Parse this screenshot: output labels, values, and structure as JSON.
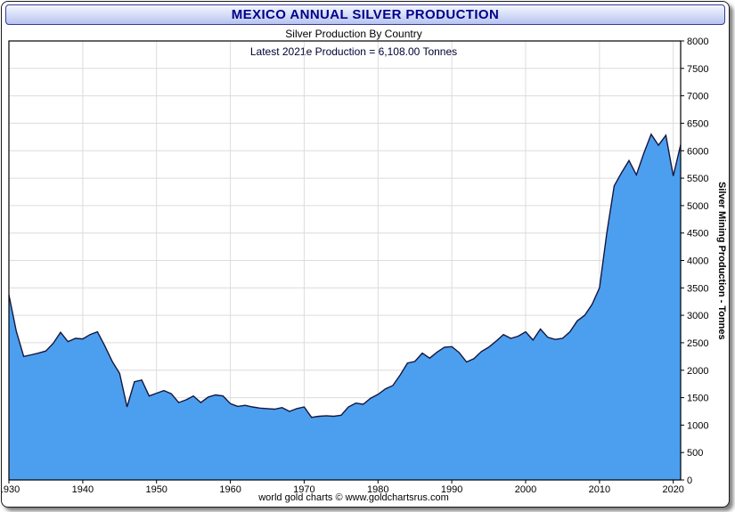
{
  "window": {
    "title": "MEXICO ANNUAL SILVER PRODUCTION"
  },
  "chart": {
    "subtitle": "Silver Production By Country",
    "annotation": "Latest 2021e Production = 6,108.00 Tonnes",
    "y_axis_title": "Silver Mining Production - Tonnes",
    "footer": "world gold charts © www.goldchartsrus.com"
  },
  "colors": {
    "area_fill": "#4C9FEF",
    "line": "#16163E",
    "grid": "#DCDCDC",
    "plot_border": "#000000",
    "tick": "#000000",
    "title_text": "#00008B",
    "titlebar_gradient_top": "#F4F7FF",
    "titlebar_gradient_bottom": "#B7C3F0"
  },
  "chart_data": {
    "type": "area",
    "title": "MEXICO ANNUAL SILVER PRODUCTION",
    "subtitle": "Silver Production By Country",
    "annotation": "Latest 2021e Production = 6,108.00 Tonnes",
    "xlabel": "",
    "ylabel": "Silver Mining Production - Tonnes",
    "ylim": [
      0,
      8000
    ],
    "y_tick_step": 500,
    "xlim": [
      1930,
      2021
    ],
    "x_tick_start": 1930,
    "x_tick_end": 2020,
    "x_tick_step": 10,
    "grid": true,
    "legend_position": "none",
    "series": [
      {
        "name": "Mexico Annual Silver Production (Tonnes)",
        "x": [
          1930,
          1931,
          1932,
          1933,
          1934,
          1935,
          1936,
          1937,
          1938,
          1939,
          1940,
          1941,
          1942,
          1943,
          1944,
          1945,
          1946,
          1947,
          1948,
          1949,
          1950,
          1951,
          1952,
          1953,
          1954,
          1955,
          1956,
          1957,
          1958,
          1959,
          1960,
          1961,
          1962,
          1963,
          1964,
          1965,
          1966,
          1967,
          1968,
          1969,
          1970,
          1971,
          1972,
          1973,
          1974,
          1975,
          1976,
          1977,
          1978,
          1979,
          1980,
          1981,
          1982,
          1983,
          1984,
          1985,
          1986,
          1987,
          1988,
          1989,
          1990,
          1991,
          1992,
          1993,
          1994,
          1995,
          1996,
          1997,
          1998,
          1999,
          2000,
          2001,
          2002,
          2003,
          2004,
          2005,
          2006,
          2007,
          2008,
          2009,
          2010,
          2011,
          2012,
          2013,
          2014,
          2015,
          2016,
          2017,
          2018,
          2019,
          2020,
          2021
        ],
        "values": [
          3370,
          2710,
          2250,
          2280,
          2310,
          2350,
          2490,
          2690,
          2520,
          2580,
          2570,
          2650,
          2700,
          2440,
          2160,
          1940,
          1330,
          1790,
          1820,
          1530,
          1580,
          1630,
          1570,
          1410,
          1460,
          1530,
          1410,
          1510,
          1550,
          1530,
          1390,
          1340,
          1360,
          1330,
          1310,
          1300,
          1290,
          1320,
          1250,
          1300,
          1330,
          1140,
          1160,
          1170,
          1160,
          1180,
          1330,
          1400,
          1380,
          1490,
          1560,
          1660,
          1720,
          1910,
          2130,
          2160,
          2310,
          2220,
          2330,
          2420,
          2430,
          2320,
          2150,
          2210,
          2340,
          2420,
          2530,
          2650,
          2580,
          2620,
          2700,
          2550,
          2750,
          2600,
          2560,
          2580,
          2700,
          2900,
          3000,
          3200,
          3500,
          4500,
          5360,
          5600,
          5820,
          5560,
          5950,
          6300,
          6100,
          6280,
          5540,
          6108
        ]
      }
    ]
  }
}
